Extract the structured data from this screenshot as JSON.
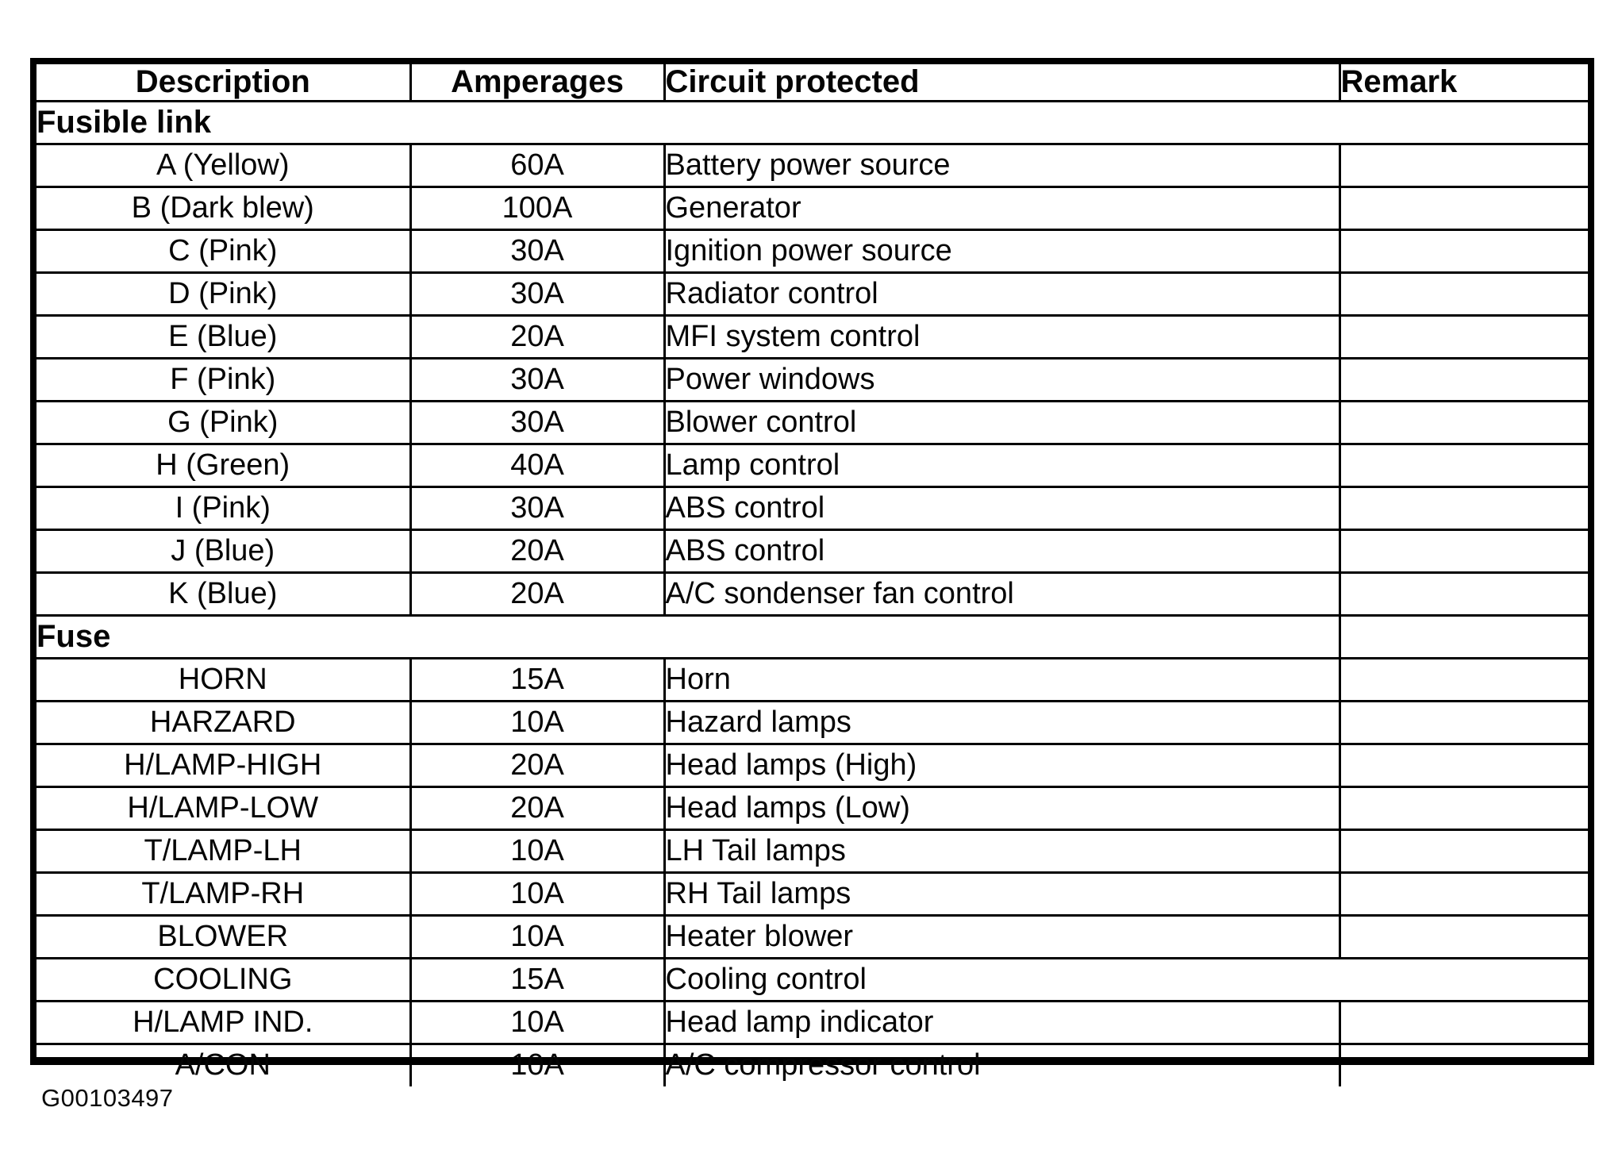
{
  "page": {
    "background_color": "#ffffff",
    "ink_color": "#000000"
  },
  "table": {
    "columns": [
      {
        "label": "Description"
      },
      {
        "label": "Amperages"
      },
      {
        "label": "Circuit protected"
      },
      {
        "label": "Remark"
      }
    ],
    "sections": [
      {
        "label": "Fusible link",
        "full_span": true,
        "rows": [
          {
            "description": "A (Yellow)",
            "amperage": "60A",
            "circuit": "Battery power source",
            "remark": "",
            "dashed_remark_rule": true
          },
          {
            "description": "B (Dark blew)",
            "amperage": "100A",
            "circuit": "Generator",
            "remark": ""
          },
          {
            "description": "C (Pink)",
            "amperage": "30A",
            "circuit": "Ignition power source",
            "remark": ""
          },
          {
            "description": "D (Pink)",
            "amperage": "30A",
            "circuit": "Radiator control",
            "remark": ""
          },
          {
            "description": "E (Blue)",
            "amperage": "20A",
            "circuit": "MFI system control",
            "remark": ""
          },
          {
            "description": "F (Pink)",
            "amperage": "30A",
            "circuit": "Power windows",
            "remark": ""
          },
          {
            "description": "G (Pink)",
            "amperage": "30A",
            "circuit": "Blower control",
            "remark": ""
          },
          {
            "description": "H (Green)",
            "amperage": "40A",
            "circuit": "Lamp control",
            "remark": ""
          },
          {
            "description": "I (Pink)",
            "amperage": "30A",
            "circuit": "ABS control",
            "remark": "",
            "dashed_remark_rule": true
          },
          {
            "description": "J (Blue)",
            "amperage": "20A",
            "circuit": "ABS control",
            "remark": ""
          },
          {
            "description": "K (Blue)",
            "amperage": "20A",
            "circuit": "A/C sondenser fan control",
            "remark": ""
          }
        ]
      },
      {
        "label": "Fuse",
        "full_span": false,
        "rows": [
          {
            "description": "HORN",
            "amperage": "15A",
            "circuit": "Horn",
            "remark": "",
            "dashed_remark_rule": true
          },
          {
            "description": "HARZARD",
            "amperage": "10A",
            "circuit": "Hazard lamps",
            "remark": ""
          },
          {
            "description": "H/LAMP-HIGH",
            "amperage": "20A",
            "circuit": "Head lamps (High)",
            "remark": ""
          },
          {
            "description": "H/LAMP-LOW",
            "amperage": "20A",
            "circuit": "Head lamps (Low)",
            "remark": "",
            "dashed_remark_rule": true
          },
          {
            "description": "T/LAMP-LH",
            "amperage": "10A",
            "circuit": "LH Tail lamps",
            "remark": "",
            "dashed_remark_rule": true
          },
          {
            "description": "T/LAMP-RH",
            "amperage": "10A",
            "circuit": "RH Tail lamps",
            "remark": "",
            "dashed_remark_rule": true
          },
          {
            "description": "BLOWER",
            "amperage": "10A",
            "circuit": "Heater blower",
            "remark": ""
          },
          {
            "description": "COOLING",
            "amperage": "15A",
            "circuit": "Cooling control",
            "remark": "",
            "merge_remark": true
          },
          {
            "description": "H/LAMP IND.",
            "amperage": "10A",
            "circuit": "Head lamp indicator",
            "remark": ""
          },
          {
            "description": "A/CON",
            "amperage": "10A",
            "circuit": "A/C compressor control",
            "remark": ""
          }
        ]
      }
    ]
  },
  "footer": {
    "figure_code": "G00103497"
  }
}
